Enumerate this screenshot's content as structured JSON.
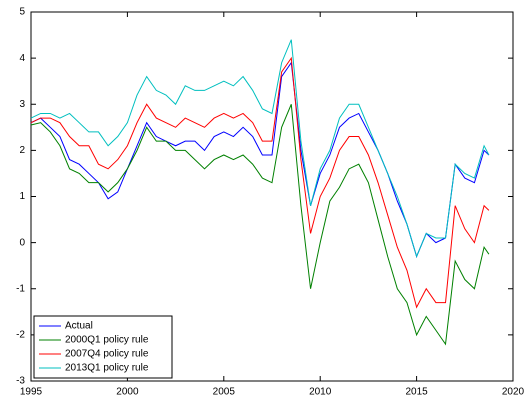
{
  "chart_data": {
    "type": "line",
    "x": [
      1995,
      1995.5,
      1996,
      1996.5,
      1997,
      1997.5,
      1998,
      1998.5,
      1999,
      1999.5,
      2000,
      2000.5,
      2001,
      2001.5,
      2002,
      2002.5,
      2003,
      2003.5,
      2004,
      2004.5,
      2005,
      2005.5,
      2006,
      2006.5,
      2007,
      2007.5,
      2008,
      2008.5,
      2009,
      2009.5,
      2010,
      2010.5,
      2011,
      2011.5,
      2012,
      2012.5,
      2013,
      2013.5,
      2014,
      2014.5,
      2015,
      2015.5,
      2016,
      2016.5,
      2017,
      2017.5,
      2018,
      2018.5,
      2018.75
    ],
    "series": [
      {
        "name": "Actual",
        "color": "#0000ff",
        "values": [
          2.6,
          2.7,
          2.5,
          2.3,
          1.8,
          1.7,
          1.5,
          1.3,
          0.95,
          1.1,
          1.6,
          2.1,
          2.6,
          2.3,
          2.2,
          2.1,
          2.2,
          2.2,
          2.0,
          2.3,
          2.4,
          2.3,
          2.5,
          2.3,
          1.9,
          1.9,
          3.6,
          3.9,
          2.0,
          0.8,
          1.5,
          1.9,
          2.5,
          2.7,
          2.8,
          2.4,
          2.0,
          1.5,
          0.9,
          0.4,
          -0.3,
          0.2,
          0.0,
          0.1,
          1.7,
          1.4,
          1.3,
          2.0,
          1.9
        ]
      },
      {
        "name": "2000Q1 policy rule",
        "color": "#008000",
        "values": [
          2.55,
          2.6,
          2.4,
          2.1,
          1.6,
          1.5,
          1.3,
          1.3,
          1.1,
          1.3,
          1.6,
          2.0,
          2.5,
          2.2,
          2.2,
          2.0,
          2.0,
          1.8,
          1.6,
          1.8,
          1.9,
          1.8,
          1.9,
          1.7,
          1.4,
          1.3,
          2.5,
          3.0,
          0.8,
          -1.0,
          0.0,
          0.9,
          1.2,
          1.6,
          1.7,
          1.3,
          0.5,
          -0.3,
          -1.0,
          -1.3,
          -2.0,
          -1.6,
          -1.9,
          -2.2,
          -0.4,
          -0.8,
          -1.0,
          -0.1,
          -0.25
        ]
      },
      {
        "name": "2007Q4 policy rule",
        "color": "#ff0000",
        "values": [
          2.6,
          2.7,
          2.7,
          2.6,
          2.3,
          2.1,
          2.1,
          1.7,
          1.6,
          1.8,
          2.1,
          2.6,
          3.0,
          2.7,
          2.6,
          2.5,
          2.7,
          2.6,
          2.5,
          2.7,
          2.8,
          2.7,
          2.8,
          2.6,
          2.2,
          2.2,
          3.7,
          4.0,
          1.8,
          0.2,
          1.0,
          1.4,
          2.0,
          2.3,
          2.3,
          1.9,
          1.3,
          0.6,
          -0.1,
          -0.6,
          -1.4,
          -1.0,
          -1.3,
          -1.3,
          0.8,
          0.3,
          0.0,
          0.8,
          0.7
        ]
      },
      {
        "name": "2013Q1 policy rule",
        "color": "#00bfbf",
        "values": [
          2.7,
          2.8,
          2.8,
          2.7,
          2.8,
          2.6,
          2.4,
          2.4,
          2.1,
          2.3,
          2.6,
          3.2,
          3.6,
          3.3,
          3.2,
          3.0,
          3.4,
          3.3,
          3.3,
          3.4,
          3.5,
          3.4,
          3.6,
          3.3,
          2.9,
          2.8,
          3.9,
          4.4,
          2.2,
          0.8,
          1.6,
          2.0,
          2.7,
          3.0,
          3.0,
          2.5,
          2.0,
          1.5,
          1.0,
          0.4,
          -0.3,
          0.2,
          0.1,
          0.1,
          1.7,
          1.5,
          1.4,
          2.1,
          1.9
        ]
      }
    ],
    "xlim": [
      1995,
      2020
    ],
    "xticks": [
      1995,
      2000,
      2005,
      2010,
      2015,
      2020
    ],
    "ylim": [
      -3,
      5
    ],
    "yticks": [
      -3,
      -2,
      -1,
      0,
      1,
      2,
      3,
      4,
      5
    ],
    "legend": "lower left"
  }
}
